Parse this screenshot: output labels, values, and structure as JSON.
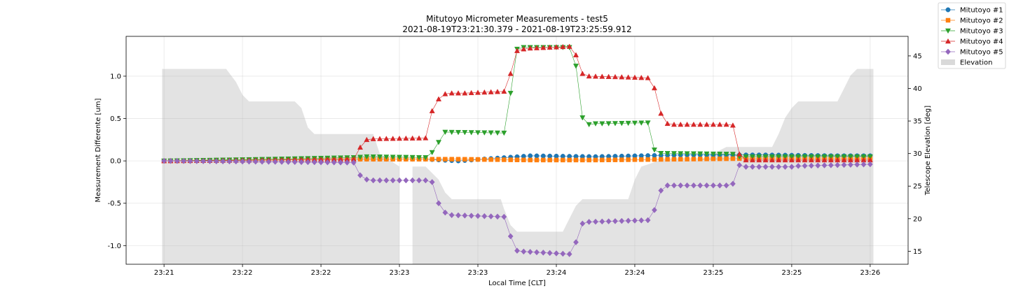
{
  "chart_data": {
    "type": "line",
    "title": "Mitutoyo Micrometer Measurements - test5",
    "subtitle": "2021-08-19T23:21:30.379 - 2021-08-19T23:25:59.912",
    "xlabel": "Local Time [CLT]",
    "ylabel": "Measurement Differente [um]",
    "y2label": "Telescope Elevation [deg]",
    "x_tick_labels": [
      "23:21",
      "23:22",
      "23:22",
      "23:23",
      "23:23",
      "23:24",
      "23:24",
      "23:25",
      "23:25",
      "23:26"
    ],
    "x_tick_seconds": [
      0,
      30,
      60,
      90,
      120,
      150,
      180,
      210,
      240,
      270
    ],
    "x_range_seconds": [
      -14.5,
      284.5
    ],
    "ylim": [
      -1.22,
      1.47
    ],
    "y_ticks": [
      "-1.0",
      "-0.5",
      "0.0",
      "0.5",
      "1.0"
    ],
    "y2lim": [
      13.0,
      48.0
    ],
    "y2_ticks": [
      "15",
      "20",
      "25",
      "30",
      "35",
      "40",
      "45"
    ],
    "grid": true,
    "legend_placement": "top-right",
    "colors": {
      "s1": "#1f77b4",
      "s2": "#ff7f0e",
      "s3": "#2ca02c",
      "s4": "#d62728",
      "s5": "#9467bd",
      "elevation": "#d9d9d9"
    },
    "sample_interval_s": 2.5,
    "sample_count": 109,
    "series": [
      {
        "name": "Mitutoyo #1",
        "marker": "circle",
        "steps": [
          [
            0,
            0.0
          ],
          [
            16,
            0.01
          ],
          [
            29,
            0.02
          ],
          [
            40,
            0.02
          ],
          [
            45,
            0.0
          ],
          [
            56,
            0.06
          ],
          [
            66,
            0.05
          ],
          [
            79,
            0.07
          ],
          [
            92,
            0.07
          ],
          [
            103,
            0.06
          ],
          [
            108,
            0.06
          ]
        ]
      },
      {
        "name": "Mitutoyo #2",
        "marker": "square",
        "steps": [
          [
            0,
            0.0
          ],
          [
            16,
            0.01
          ],
          [
            29,
            0.02
          ],
          [
            40,
            0.02
          ],
          [
            45,
            0.02
          ],
          [
            56,
            0.01
          ],
          [
            66,
            0.01
          ],
          [
            79,
            0.02
          ],
          [
            92,
            0.03
          ],
          [
            103,
            0.03
          ],
          [
            108,
            0.03
          ]
        ]
      },
      {
        "name": "Mitutoyo #3",
        "marker": "triangle-down",
        "steps": [
          [
            0,
            0.0
          ],
          [
            16,
            0.02
          ],
          [
            29,
            0.04
          ],
          [
            31,
            0.05
          ],
          [
            40,
            0.04
          ],
          [
            41,
            0.1
          ],
          [
            42,
            0.22
          ],
          [
            43,
            0.34
          ],
          [
            52,
            0.33
          ],
          [
            53,
            0.8
          ],
          [
            54,
            1.32
          ],
          [
            55,
            1.34
          ],
          [
            62,
            1.34
          ],
          [
            63,
            1.12
          ],
          [
            64,
            0.51
          ],
          [
            65,
            0.43
          ],
          [
            66,
            0.44
          ],
          [
            67,
            0.44
          ],
          [
            74,
            0.45
          ],
          [
            75,
            0.13
          ],
          [
            76,
            0.09
          ],
          [
            87,
            0.08
          ],
          [
            88,
            0.05
          ],
          [
            108,
            0.05
          ]
        ]
      },
      {
        "name": "Mitutoyo #4",
        "marker": "triangle-up",
        "steps": [
          [
            0,
            0.0
          ],
          [
            16,
            0.01
          ],
          [
            29,
            0.02
          ],
          [
            30,
            0.16
          ],
          [
            31,
            0.25
          ],
          [
            32,
            0.26
          ],
          [
            40,
            0.27
          ],
          [
            41,
            0.59
          ],
          [
            42,
            0.73
          ],
          [
            43,
            0.79
          ],
          [
            44,
            0.8
          ],
          [
            46,
            0.8
          ],
          [
            52,
            0.82
          ],
          [
            53,
            1.03
          ],
          [
            54,
            1.3
          ],
          [
            55,
            1.32
          ],
          [
            56,
            1.33
          ],
          [
            62,
            1.35
          ],
          [
            63,
            1.25
          ],
          [
            64,
            1.03
          ],
          [
            65,
            1.0
          ],
          [
            70,
            0.99
          ],
          [
            74,
            0.98
          ],
          [
            75,
            0.86
          ],
          [
            76,
            0.56
          ],
          [
            77,
            0.44
          ],
          [
            78,
            0.43
          ],
          [
            86,
            0.43
          ],
          [
            87,
            0.42
          ],
          [
            88,
            0.08
          ],
          [
            89,
            0.01
          ],
          [
            108,
            0.01
          ]
        ]
      },
      {
        "name": "Mitutoyo #5",
        "marker": "diamond",
        "steps": [
          [
            0,
            0.0
          ],
          [
            16,
            -0.01
          ],
          [
            29,
            -0.02
          ],
          [
            30,
            -0.17
          ],
          [
            31,
            -0.22
          ],
          [
            32,
            -0.23
          ],
          [
            40,
            -0.23
          ],
          [
            41,
            -0.25
          ],
          [
            42,
            -0.5
          ],
          [
            43,
            -0.61
          ],
          [
            44,
            -0.64
          ],
          [
            52,
            -0.66
          ],
          [
            53,
            -0.89
          ],
          [
            54,
            -1.06
          ],
          [
            55,
            -1.07
          ],
          [
            62,
            -1.1
          ],
          [
            63,
            -0.96
          ],
          [
            64,
            -0.74
          ],
          [
            65,
            -0.72
          ],
          [
            74,
            -0.7
          ],
          [
            75,
            -0.58
          ],
          [
            76,
            -0.35
          ],
          [
            77,
            -0.29
          ],
          [
            86,
            -0.29
          ],
          [
            87,
            -0.27
          ],
          [
            88,
            -0.05
          ],
          [
            89,
            -0.07
          ],
          [
            96,
            -0.07
          ],
          [
            97,
            -0.06
          ],
          [
            108,
            -0.04
          ]
        ]
      }
    ],
    "elevation": {
      "name": "Elevation",
      "profile": [
        [
          -0.3,
          13.0
        ],
        [
          -0.3,
          43.0
        ],
        [
          9.5,
          43.0
        ],
        [
          11.0,
          41.0
        ],
        [
          12.0,
          39.0
        ],
        [
          13.0,
          38.0
        ],
        [
          20.0,
          38.0
        ],
        [
          21.0,
          37.0
        ],
        [
          22.0,
          34.0
        ],
        [
          23.0,
          33.0
        ],
        [
          32.0,
          33.0
        ],
        [
          33.0,
          30.0
        ],
        [
          34.5,
          29.0
        ],
        [
          36.0,
          28.0
        ],
        [
          36.0,
          13.0
        ],
        [
          38.0,
          13.0
        ],
        [
          38.0,
          28.0
        ],
        [
          40.0,
          28.0
        ],
        [
          42.0,
          26.0
        ],
        [
          43.0,
          24.0
        ],
        [
          44.0,
          23.0
        ],
        [
          51.5,
          23.0
        ],
        [
          52.0,
          21.5
        ],
        [
          53.0,
          19.0
        ],
        [
          54.0,
          18.0
        ],
        [
          61.0,
          18.0
        ],
        [
          62.0,
          20.0
        ],
        [
          63.0,
          22.0
        ],
        [
          64.0,
          23.0
        ],
        [
          71.0,
          23.0
        ],
        [
          72.0,
          26.0
        ],
        [
          73.0,
          28.0
        ],
        [
          74.5,
          28.5
        ],
        [
          76.0,
          29.0
        ],
        [
          82.0,
          29.0
        ],
        [
          84.0,
          30.0
        ],
        [
          86.0,
          31.0
        ],
        [
          93.0,
          31.0
        ],
        [
          94.0,
          33.0
        ],
        [
          95.0,
          35.5
        ],
        [
          96.0,
          37.0
        ],
        [
          97.0,
          38.0
        ],
        [
          103.0,
          38.0
        ],
        [
          104.0,
          40.0
        ],
        [
          105.0,
          42.0
        ],
        [
          106.0,
          43.0
        ],
        [
          108.5,
          43.0
        ],
        [
          108.5,
          13.0
        ]
      ]
    }
  }
}
